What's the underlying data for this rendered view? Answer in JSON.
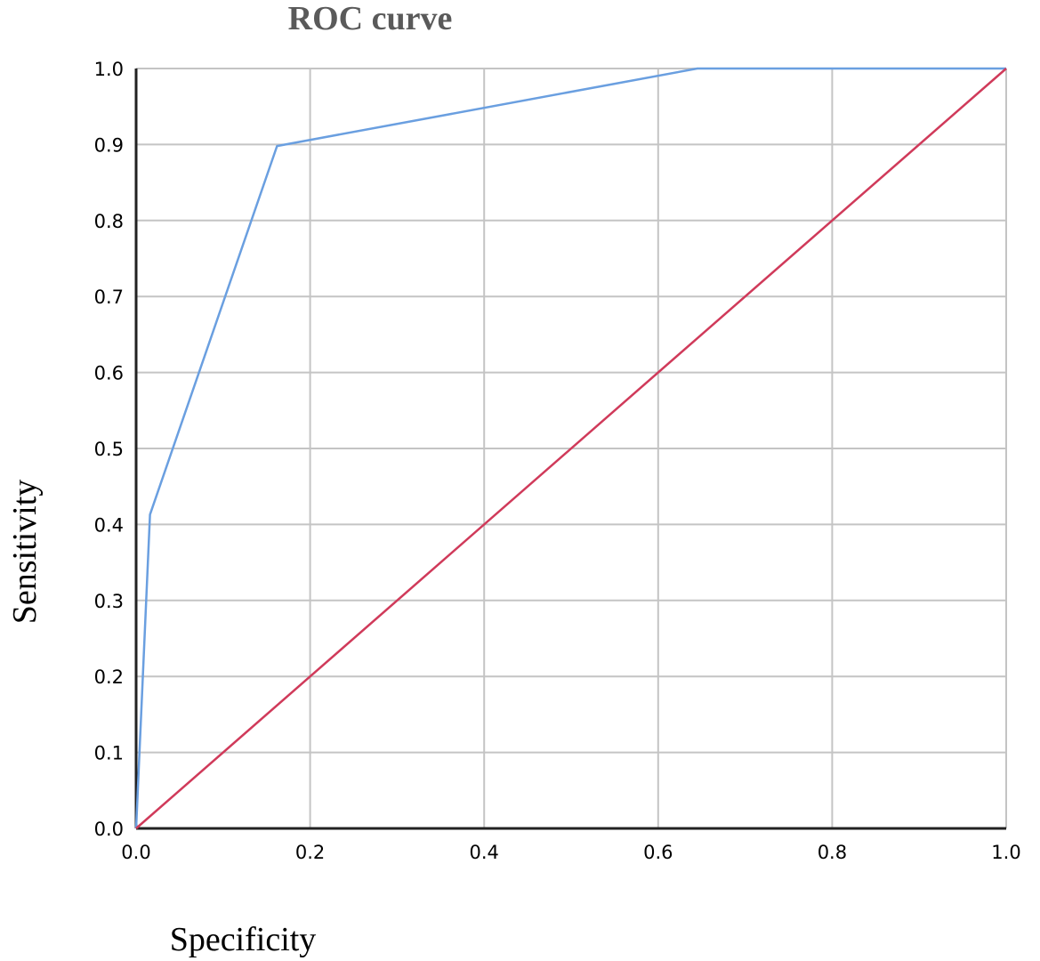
{
  "chart_data": {
    "type": "line",
    "title": "ROC curve",
    "xlabel": "Specificity",
    "ylabel": "Sensitivity",
    "xlim": [
      0,
      1
    ],
    "ylim": [
      0,
      1
    ],
    "x_ticks": [
      "0.0",
      "0.2",
      "0.4",
      "0.6",
      "0.8",
      "1.0"
    ],
    "y_ticks": [
      "0.0",
      "0.1",
      "0.2",
      "0.3",
      "0.4",
      "0.5",
      "0.6",
      "0.7",
      "0.8",
      "0.9",
      "1.0"
    ],
    "grid": true,
    "series": [
      {
        "color": "#6a9fe0",
        "x": [
          0.0,
          0.016,
          0.162,
          0.645,
          1.0
        ],
        "y": [
          0.0,
          0.413,
          0.898,
          1.0,
          1.0
        ]
      },
      {
        "color": "#d03a5a",
        "x": [
          0.0,
          1.0
        ],
        "y": [
          0.0,
          1.0
        ]
      }
    ]
  }
}
